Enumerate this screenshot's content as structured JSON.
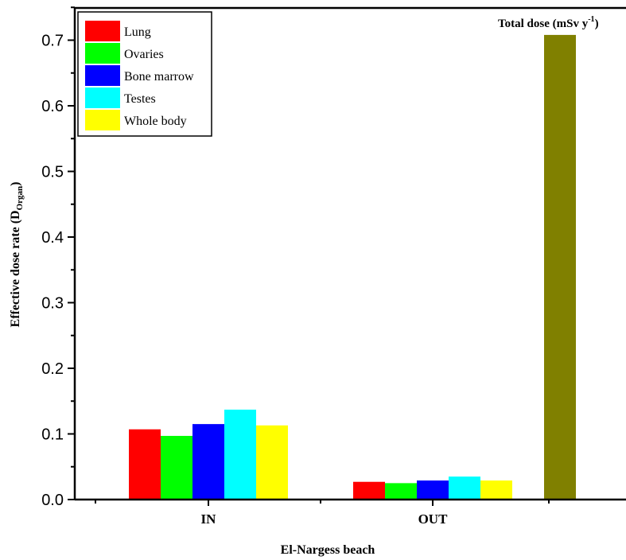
{
  "chart_data": {
    "type": "bar",
    "xlabel": "El-Nargess beach",
    "ylabel_main": "Effective dose rate (D",
    "ylabel_sub": "Organ",
    "ylabel_end": ")",
    "ylim": [
      0,
      0.75
    ],
    "yticks": [
      "0.0",
      "0.1",
      "0.2",
      "0.3",
      "0.4",
      "0.5",
      "0.6",
      "0.7"
    ],
    "categories": [
      "IN",
      "OUT"
    ],
    "series": [
      {
        "name": "Lung",
        "color": "#ff0000",
        "values": [
          0.107,
          0.027
        ]
      },
      {
        "name": "Ovaries",
        "color": "#00ff00",
        "values": [
          0.097,
          0.025
        ]
      },
      {
        "name": "Bone marrow",
        "color": "#0000ff",
        "values": [
          0.115,
          0.029
        ]
      },
      {
        "name": "Testes",
        "color": "#00ffff",
        "values": [
          0.137,
          0.035
        ]
      },
      {
        "name": "Whole body",
        "color": "#ffff00",
        "values": [
          0.113,
          0.029
        ]
      }
    ],
    "total": {
      "value": 0.708,
      "color": "#808000",
      "label_main": "Total dose (mSv y",
      "label_sup": "-1",
      "label_end": ")"
    },
    "legend_position": "top-left",
    "grid": false
  }
}
